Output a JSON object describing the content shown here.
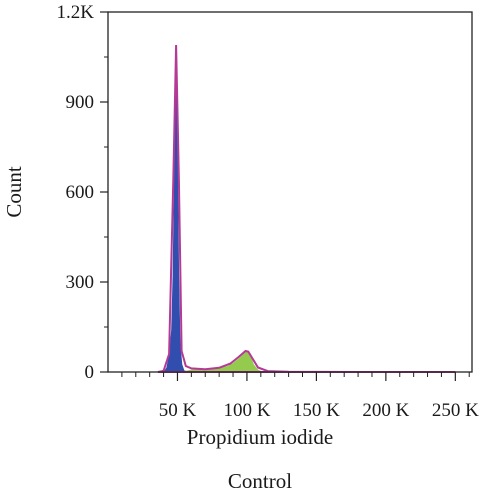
{
  "chart_data": {
    "type": "area",
    "title": "",
    "xlabel": "Propidium iodide",
    "ylabel": "Count",
    "caption": "Control",
    "xlim": [
      0,
      262000
    ],
    "ylim": [
      0,
      1200
    ],
    "x_ticks": [
      50000,
      100000,
      150000,
      200000,
      250000
    ],
    "x_tick_labels": [
      "50 K",
      "100 K",
      "150 K",
      "200 K",
      "250 K"
    ],
    "y_ticks": [
      0,
      300,
      600,
      900,
      1200
    ],
    "y_tick_labels": [
      "0",
      "300",
      "600",
      "900",
      "1.2K"
    ],
    "grid": false,
    "series": [
      {
        "name": "",
        "color": "#1f3fa8",
        "x": [
          40000,
          42000,
          44000,
          45500,
          46500,
          47500,
          48300,
          49000,
          49700,
          50400,
          51200,
          52200,
          53500,
          55000,
          60000
        ],
        "values": [
          0,
          15,
          60,
          140,
          320,
          650,
          980,
          1090,
          1020,
          700,
          320,
          90,
          25,
          5,
          0
        ]
      },
      {
        "name": "",
        "color": "#8bc63f",
        "x": [
          52000,
          60000,
          70000,
          80000,
          86000,
          90000,
          94000,
          97000,
          99000,
          101000,
          103000,
          105000,
          108000,
          112000
        ],
        "values": [
          0,
          8,
          10,
          14,
          20,
          30,
          45,
          58,
          66,
          68,
          52,
          25,
          8,
          0
        ]
      },
      {
        "name": "",
        "color": "#b43a96",
        "x": [
          36000,
          40000,
          44000,
          47000,
          49000,
          51000,
          53000,
          56000,
          60000,
          70000,
          80000,
          88000,
          94000,
          99000,
          101000,
          104000,
          108000,
          115000,
          130000,
          180000,
          250000
        ],
        "values": [
          0,
          4,
          60,
          640,
          1090,
          640,
          70,
          20,
          12,
          9,
          14,
          28,
          50,
          70,
          68,
          45,
          15,
          3,
          1,
          0,
          0
        ]
      }
    ]
  }
}
